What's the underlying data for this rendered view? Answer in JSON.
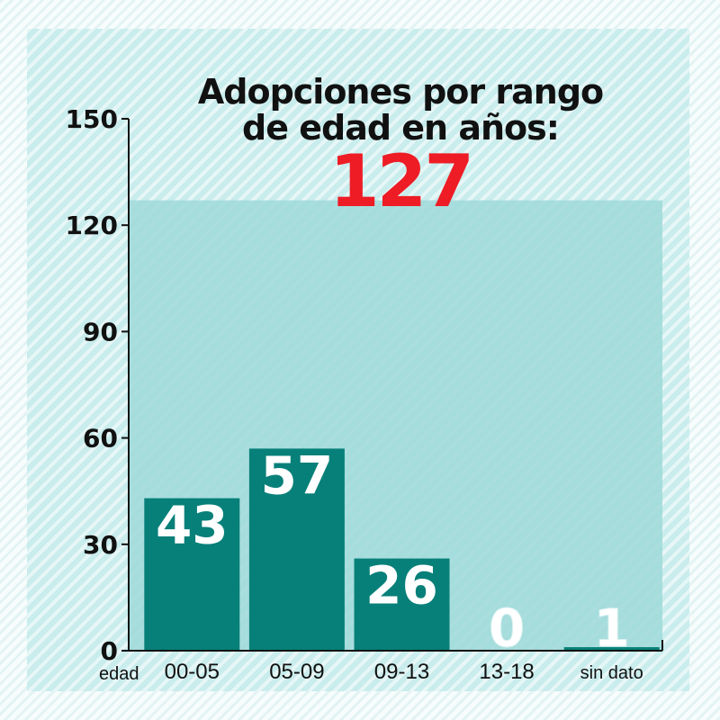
{
  "chart_data": {
    "type": "bar",
    "title": "Adopciones por rango de edad en años:",
    "total": "127",
    "xlabel": "edad",
    "ylabel": "",
    "ylim": [
      0,
      150
    ],
    "yticks": [
      "0",
      "30",
      "60",
      "90",
      "120",
      "150"
    ],
    "categories": [
      "00-05",
      "05-09",
      "09-13",
      "13-18",
      "sin dato"
    ],
    "values": [
      43,
      57,
      26,
      0,
      1
    ],
    "data_labels": [
      "43",
      "57",
      "26",
      "0",
      "1"
    ],
    "total_band_value": 127,
    "grid": false,
    "legend": "none"
  },
  "colors": {
    "bar": "#078079",
    "total_band": "#9fd9d9",
    "axis": "#111111",
    "title": "#111111",
    "total": "#ee1c25",
    "data_label": "#ffffff"
  }
}
